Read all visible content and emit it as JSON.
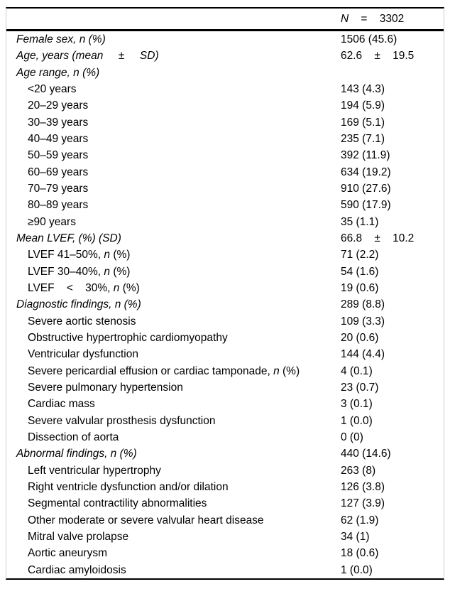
{
  "colors": {
    "background": "#ffffff",
    "text": "#000000",
    "rule": "#000000",
    "side_border": "#c9c9c9"
  },
  "table": {
    "header": {
      "parts": [
        {
          "t": "N",
          "i": true
        },
        {
          "t": "    =    3302",
          "i": false
        }
      ]
    },
    "rows": [
      {
        "indent": 0,
        "label_parts": [
          {
            "t": "Female sex, n (%)",
            "i": true
          }
        ],
        "value": "1506 (45.6)"
      },
      {
        "indent": 0,
        "label_parts": [
          {
            "t": "Age, years (mean     ±     SD)",
            "i": true
          }
        ],
        "value": "62.6    ±    19.5"
      },
      {
        "indent": 0,
        "label_parts": [
          {
            "t": "Age range, n (%)",
            "i": true
          }
        ],
        "value": ""
      },
      {
        "indent": 1,
        "label_parts": [
          {
            "t": "<20 years",
            "i": false
          }
        ],
        "value": "143 (4.3)"
      },
      {
        "indent": 1,
        "label_parts": [
          {
            "t": "20–29 years",
            "i": false
          }
        ],
        "value": "194 (5.9)"
      },
      {
        "indent": 1,
        "label_parts": [
          {
            "t": "30–39 years",
            "i": false
          }
        ],
        "value": "169 (5.1)"
      },
      {
        "indent": 1,
        "label_parts": [
          {
            "t": "40–49 years",
            "i": false
          }
        ],
        "value": "235 (7.1)"
      },
      {
        "indent": 1,
        "label_parts": [
          {
            "t": "50–59 years",
            "i": false
          }
        ],
        "value": "392 (11.9)"
      },
      {
        "indent": 1,
        "label_parts": [
          {
            "t": "60–69 years",
            "i": false
          }
        ],
        "value": "634 (19.2)"
      },
      {
        "indent": 1,
        "label_parts": [
          {
            "t": "70–79 years",
            "i": false
          }
        ],
        "value": "910 (27.6)"
      },
      {
        "indent": 1,
        "label_parts": [
          {
            "t": "80–89 years",
            "i": false
          }
        ],
        "value": "590 (17.9)"
      },
      {
        "indent": 1,
        "label_parts": [
          {
            "t": "≥90 years",
            "i": false
          }
        ],
        "value": "35 (1.1)"
      },
      {
        "indent": 0,
        "label_parts": [
          {
            "t": "Mean LVEF, (%) (SD)",
            "i": true
          }
        ],
        "value": "66.8    ±    10.2"
      },
      {
        "indent": 1,
        "label_parts": [
          {
            "t": "LVEF 41–50%, ",
            "i": false
          },
          {
            "t": "n",
            "i": true
          },
          {
            "t": " (%)",
            "i": false
          }
        ],
        "value": "71 (2.2)"
      },
      {
        "indent": 1,
        "label_parts": [
          {
            "t": "LVEF 30–40%, ",
            "i": false
          },
          {
            "t": "n",
            "i": true
          },
          {
            "t": " (%)",
            "i": false
          }
        ],
        "value": "54 (1.6)"
      },
      {
        "indent": 1,
        "label_parts": [
          {
            "t": "LVEF    <    30%, ",
            "i": false
          },
          {
            "t": "n",
            "i": true
          },
          {
            "t": " (%)",
            "i": false
          }
        ],
        "value": "19 (0.6)"
      },
      {
        "indent": 0,
        "label_parts": [
          {
            "t": "Diagnostic findings, n (%)",
            "i": true
          }
        ],
        "value": "289 (8.8)"
      },
      {
        "indent": 1,
        "label_parts": [
          {
            "t": "Severe aortic stenosis",
            "i": false
          }
        ],
        "value": "109 (3.3)"
      },
      {
        "indent": 1,
        "label_parts": [
          {
            "t": "Obstructive hypertrophic cardiomyopathy",
            "i": false
          }
        ],
        "value": "20 (0.6)"
      },
      {
        "indent": 1,
        "label_parts": [
          {
            "t": "Ventricular dysfunction",
            "i": false
          }
        ],
        "value": "144 (4.4)"
      },
      {
        "indent": 1,
        "label_parts": [
          {
            "t": "Severe pericardial effusion or cardiac tamponade, ",
            "i": false
          },
          {
            "t": "n",
            "i": true
          },
          {
            "t": " (%)",
            "i": false
          }
        ],
        "value": "4 (0.1)"
      },
      {
        "indent": 1,
        "label_parts": [
          {
            "t": "Severe pulmonary hypertension",
            "i": false
          }
        ],
        "value": "23 (0.7)"
      },
      {
        "indent": 1,
        "label_parts": [
          {
            "t": "Cardiac mass",
            "i": false
          }
        ],
        "value": "3 (0.1)"
      },
      {
        "indent": 1,
        "label_parts": [
          {
            "t": "Severe valvular prosthesis dysfunction",
            "i": false
          }
        ],
        "value": "1 (0.0)"
      },
      {
        "indent": 1,
        "label_parts": [
          {
            "t": "Dissection of aorta",
            "i": false
          }
        ],
        "value": "0 (0)"
      },
      {
        "indent": 0,
        "label_parts": [
          {
            "t": "Abnormal findings, n (%)",
            "i": true
          }
        ],
        "value": "440 (14.6)"
      },
      {
        "indent": 1,
        "label_parts": [
          {
            "t": "Left ventricular hypertrophy",
            "i": false
          }
        ],
        "value": "263 (8)"
      },
      {
        "indent": 1,
        "label_parts": [
          {
            "t": "Right ventricle dysfunction and/or dilation",
            "i": false
          }
        ],
        "value": "126 (3.8)"
      },
      {
        "indent": 1,
        "label_parts": [
          {
            "t": "Segmental contractility abnormalities",
            "i": false
          }
        ],
        "value": "127 (3.9)"
      },
      {
        "indent": 1,
        "label_parts": [
          {
            "t": "Other moderate or severe valvular heart disease",
            "i": false
          }
        ],
        "value": "62 (1.9)"
      },
      {
        "indent": 1,
        "label_parts": [
          {
            "t": "Mitral valve prolapse",
            "i": false
          }
        ],
        "value": "34 (1)"
      },
      {
        "indent": 1,
        "label_parts": [
          {
            "t": "Aortic aneurysm",
            "i": false
          }
        ],
        "value": "18 (0.6)"
      },
      {
        "indent": 1,
        "label_parts": [
          {
            "t": "Cardiac amyloidosis",
            "i": false
          }
        ],
        "value": "1 (0.0)"
      }
    ]
  }
}
